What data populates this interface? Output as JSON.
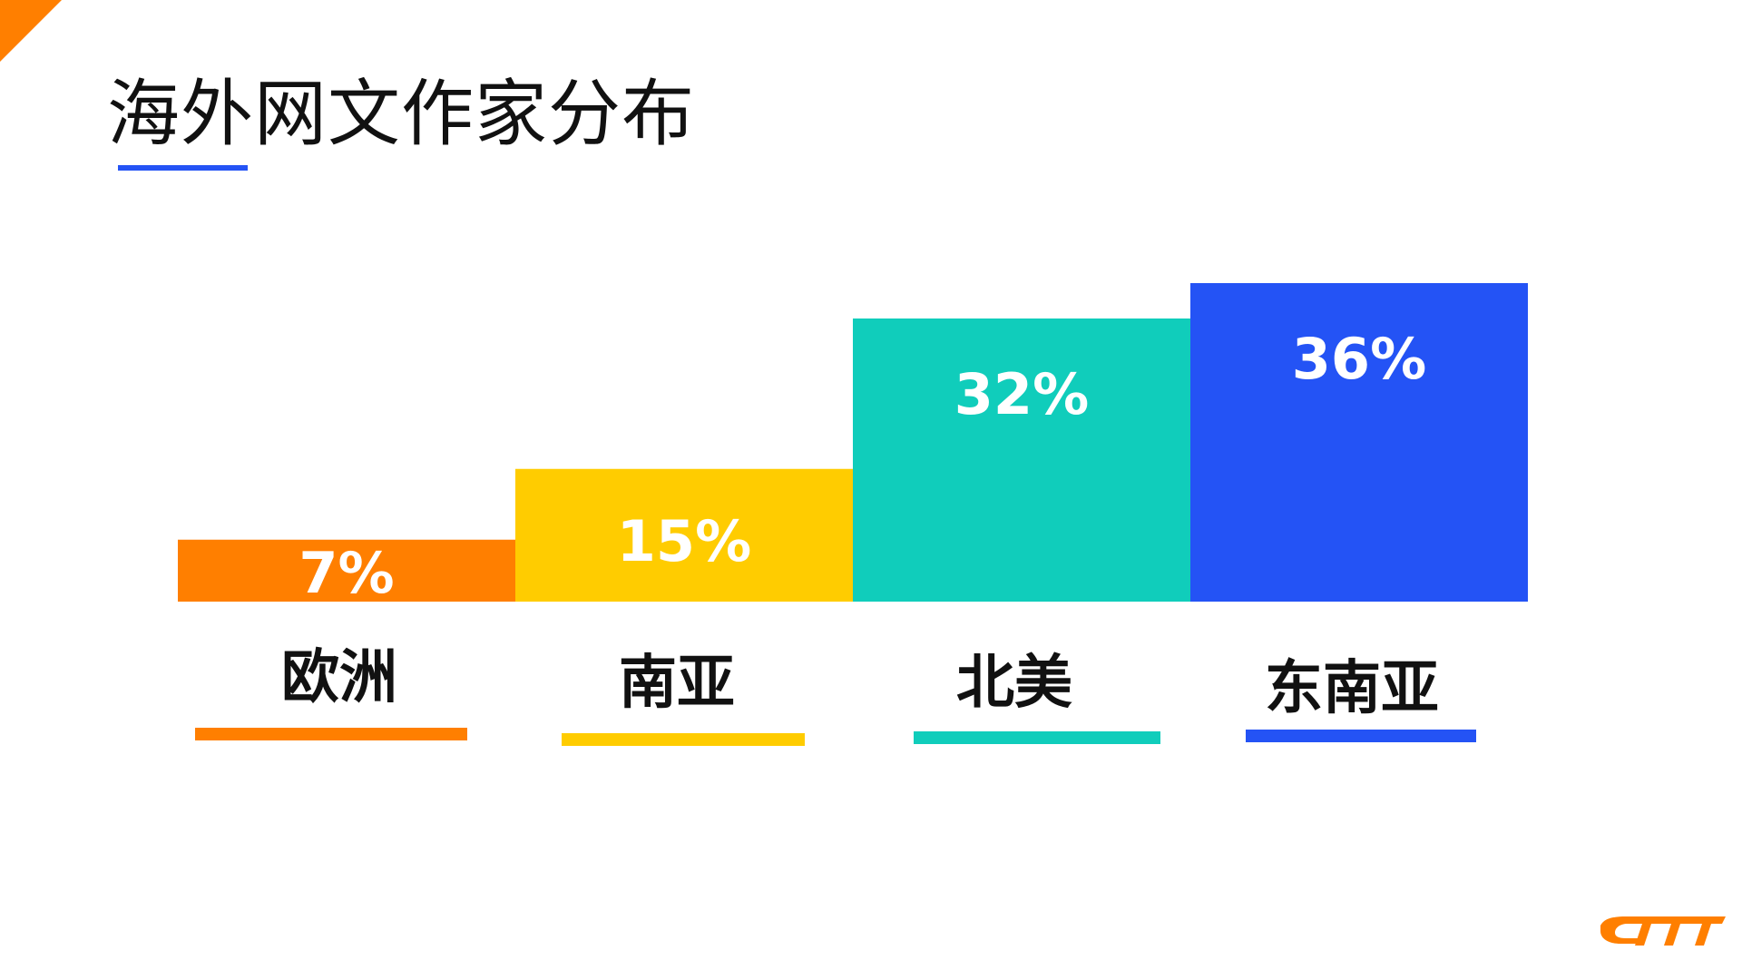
{
  "page": {
    "title": "海外网文作家分布"
  },
  "colors": {
    "orange": "#ff7f00",
    "yellow": "#ffcc00",
    "teal": "#10cdbb",
    "blue": "#2453f5",
    "title_accent": "#2453f5",
    "value_text": "#ffffff",
    "label_text": "#111111"
  },
  "icons": {
    "corner": "orange-corner-triangle",
    "logo": "brand-logo"
  },
  "chart_data": {
    "type": "bar",
    "categories": [
      "欧洲",
      "南亚",
      "北美",
      "东南亚"
    ],
    "values": [
      7,
      15,
      32,
      36
    ],
    "value_labels": [
      "7%",
      "15%",
      "32%",
      "36%"
    ],
    "bar_colors": [
      "#ff7f00",
      "#ffcc00",
      "#10cdbb",
      "#2453f5"
    ],
    "title": "海外网文作家分布",
    "xlabel": "",
    "ylabel": "",
    "ylim": [
      0,
      40
    ],
    "grid": false,
    "legend": "none"
  }
}
